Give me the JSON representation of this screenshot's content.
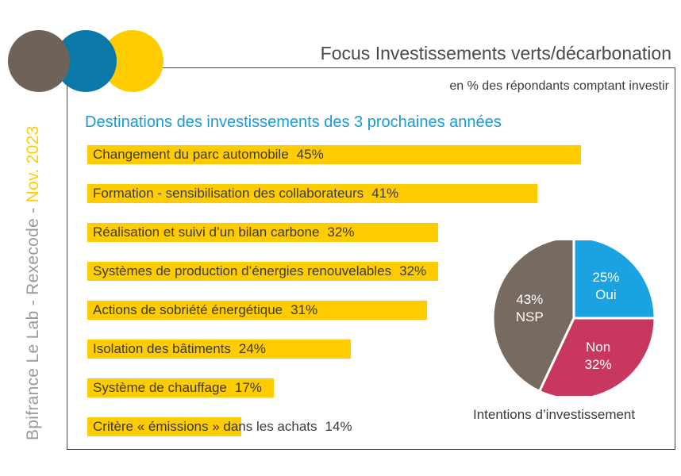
{
  "header": {
    "title": "Focus Investissements verts/décarbonation",
    "unit": "en % des répondants comptant investir",
    "side_source": "Bpifrance Le Lab - Rexecode - ",
    "side_date": "Nov. 2023"
  },
  "colors": {
    "brown": "#6e6259",
    "blue": "#0a79a8",
    "yellow": "#ffcc00",
    "pie_oui": "#1aa3e0",
    "pie_non": "#c8375e",
    "pie_nsp": "#776a61",
    "subtitle": "#1a9ad6"
  },
  "chart_data": [
    {
      "type": "bar",
      "orientation": "horizontal",
      "title": "Destinations des investissements des 3 prochaines années",
      "unit": "%",
      "xlim": [
        0,
        50
      ],
      "categories": [
        "Changement du parc automobile",
        "Formation - sensibilisation des collaborateurs",
        "Réalisation et suivi d’un bilan carbone",
        "Systèmes de production d’énergies renouvelables",
        "Actions de sobriété énergétique",
        "Isolation des bâtiments",
        "Système de chauffage",
        "Critère « émissions » dans les achats"
      ],
      "values": [
        45,
        41,
        32,
        32,
        31,
        24,
        17,
        14
      ],
      "labels": [
        "45%",
        "41%",
        "32%",
        "32%",
        "31%",
        "24%",
        "17%",
        "14%"
      ]
    },
    {
      "type": "pie",
      "title": "Intentions d’investissement",
      "slices": [
        {
          "name": "Oui",
          "value": 25,
          "label": "25%"
        },
        {
          "name": "Non",
          "value": 32,
          "label": "32%"
        },
        {
          "name": "NSP",
          "value": 43,
          "label": "43%"
        }
      ]
    }
  ]
}
